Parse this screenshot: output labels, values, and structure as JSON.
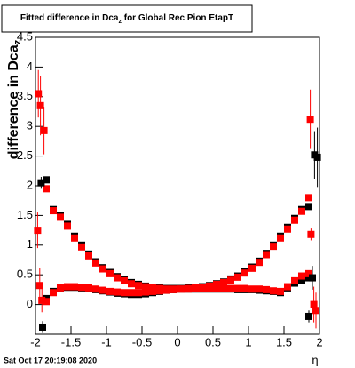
{
  "chart_data": {
    "type": "scatter",
    "title": [
      "Fitted difference in Dca",
      "z",
      " for Global Rec Pion EtapT"
    ],
    "y_label": [
      "difference in Dca",
      "z"
    ],
    "x_label": "η",
    "footer": "Sat Oct 17 20:19:08 2020",
    "xlim": [
      -2,
      2
    ],
    "ylim": [
      -0.5,
      4.5
    ],
    "xticks": [
      -2,
      -1.5,
      -1,
      -0.5,
      0,
      0.5,
      1,
      1.5,
      2
    ],
    "yticks": [
      0,
      0.5,
      1,
      1.5,
      2,
      2.5,
      3,
      3.5,
      4,
      4.5
    ],
    "series": [
      {
        "color": "#000000",
        "x": [
          -1.85,
          -1.75,
          -1.65,
          -1.55,
          -1.45,
          -1.35,
          -1.25,
          -1.15,
          -1.05,
          -0.95,
          -0.85,
          -0.75,
          -0.65,
          -0.55,
          -0.45,
          -0.35,
          -0.25,
          -0.15,
          -0.05,
          0.05,
          0.15,
          0.25,
          0.35,
          0.45,
          0.55,
          0.65,
          0.75,
          0.85,
          0.95,
          1.05,
          1.15,
          1.25,
          1.35,
          1.45,
          1.55,
          1.65,
          1.75,
          1.85
        ],
        "values": [
          0.1,
          0.22,
          0.28,
          0.29,
          0.29,
          0.28,
          0.27,
          0.25,
          0.23,
          0.21,
          0.19,
          0.18,
          0.17,
          0.17,
          0.18,
          0.2,
          0.22,
          0.24,
          0.25,
          0.26,
          0.26,
          0.26,
          0.26,
          0.26,
          0.26,
          0.26,
          0.26,
          0.25,
          0.25,
          0.25,
          0.24,
          0.23,
          0.22,
          0.2,
          0.28,
          0.36,
          0.4,
          0.45
        ]
      },
      {
        "color": "#000000",
        "x": [
          -1.85,
          -1.75,
          -1.65,
          -1.55,
          -1.45,
          -1.35,
          -1.25,
          -1.15,
          -1.05,
          -0.95,
          -0.85,
          -0.75,
          -0.65,
          -0.55,
          -0.45,
          -0.35,
          -0.25,
          -0.15,
          -0.05,
          0.05,
          0.15,
          0.25,
          0.35,
          0.45,
          0.55,
          0.65,
          0.75,
          0.85,
          0.95,
          1.05,
          1.15,
          1.25,
          1.35,
          1.45,
          1.55,
          1.65,
          1.75,
          1.85
        ],
        "values": [
          2.1,
          1.6,
          1.5,
          1.35,
          1.15,
          1.0,
          0.85,
          0.72,
          0.62,
          0.54,
          0.47,
          0.42,
          0.37,
          0.34,
          0.31,
          0.29,
          0.28,
          0.27,
          0.27,
          0.27,
          0.28,
          0.29,
          0.3,
          0.32,
          0.35,
          0.38,
          0.43,
          0.48,
          0.55,
          0.63,
          0.73,
          0.86,
          1.0,
          1.15,
          1.3,
          1.45,
          1.6,
          1.65
        ]
      },
      {
        "color": "#ff0000",
        "x": [
          -1.85,
          -1.75,
          -1.65,
          -1.55,
          -1.45,
          -1.35,
          -1.25,
          -1.15,
          -1.05,
          -0.95,
          -0.85,
          -0.75,
          -0.65,
          -0.55,
          -0.45,
          -0.35,
          -0.25,
          -0.15,
          -0.05,
          0.05,
          0.15,
          0.25,
          0.35,
          0.45,
          0.55,
          0.65,
          0.75,
          0.85,
          0.95,
          1.05,
          1.15,
          1.25,
          1.35,
          1.45,
          1.55,
          1.65,
          1.75,
          1.85
        ],
        "values": [
          0.05,
          0.2,
          0.28,
          0.3,
          0.3,
          0.29,
          0.28,
          0.26,
          0.24,
          0.22,
          0.21,
          0.2,
          0.2,
          0.2,
          0.21,
          0.22,
          0.23,
          0.24,
          0.25,
          0.26,
          0.26,
          0.27,
          0.27,
          0.27,
          0.27,
          0.27,
          0.27,
          0.27,
          0.27,
          0.26,
          0.26,
          0.25,
          0.23,
          0.22,
          0.3,
          0.4,
          0.48,
          0.52
        ]
      },
      {
        "color": "#ff0000",
        "x": [
          -1.85,
          -1.75,
          -1.65,
          -1.55,
          -1.45,
          -1.35,
          -1.25,
          -1.15,
          -1.05,
          -0.95,
          -0.85,
          -0.75,
          -0.65,
          -0.55,
          -0.45,
          -0.35,
          -0.25,
          -0.15,
          -0.05,
          0.05,
          0.15,
          0.25,
          0.35,
          0.45,
          0.55,
          0.65,
          0.75,
          0.85,
          0.95,
          1.05,
          1.15,
          1.25,
          1.35,
          1.45,
          1.55,
          1.65,
          1.75,
          1.85
        ],
        "values": [
          1.95,
          1.58,
          1.47,
          1.32,
          1.12,
          0.97,
          0.82,
          0.7,
          0.6,
          0.52,
          0.45,
          0.4,
          0.35,
          0.32,
          0.3,
          0.28,
          0.27,
          0.26,
          0.26,
          0.26,
          0.27,
          0.28,
          0.29,
          0.31,
          0.34,
          0.37,
          0.41,
          0.46,
          0.53,
          0.61,
          0.71,
          0.84,
          0.98,
          1.12,
          1.27,
          1.42,
          1.57,
          1.8
        ]
      },
      {
        "color": "#000000",
        "x": [
          -1.92,
          -1.9,
          1.85,
          1.9,
          1.93,
          1.97
        ],
        "values": [
          2.05,
          -0.38,
          -0.2,
          0.45,
          2.52,
          2.48
        ],
        "errors": [
          0.1,
          0.1,
          0.1,
          0.2,
          0.4,
          0.5
        ]
      },
      {
        "color": "#ff0000",
        "x": [
          -1.96,
          -1.93,
          -1.88,
          -1.97,
          -1.94,
          -1.91,
          1.87,
          1.88,
          1.92,
          1.95
        ],
        "values": [
          3.55,
          3.35,
          2.93,
          1.25,
          0.32,
          0.07,
          3.12,
          1.18,
          0.0,
          -0.1
        ],
        "errors": [
          0.4,
          0.5,
          0.4,
          0.3,
          0.3,
          0.2,
          0.5,
          0.1,
          0.3,
          0.3
        ]
      }
    ]
  }
}
